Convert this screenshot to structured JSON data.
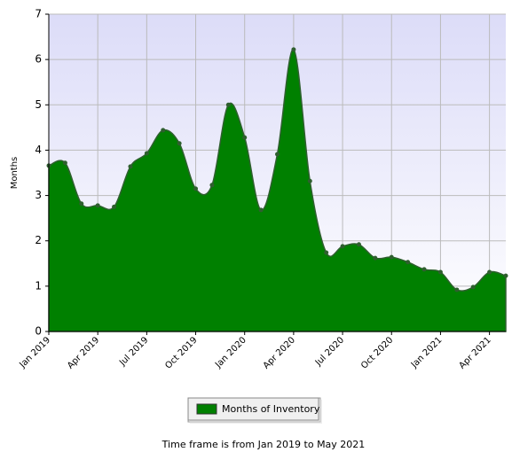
{
  "chart_data": {
    "type": "area",
    "y_label": "Months",
    "categories": [
      "Jan 2019",
      null,
      null,
      "Apr 2019",
      null,
      null,
      "Jul 2019",
      null,
      null,
      "Oct 2019",
      null,
      null,
      "Jan 2020",
      null,
      null,
      "Apr 2020",
      null,
      null,
      "Jul 2020",
      null,
      null,
      "Oct 2020",
      null,
      null,
      "Jan 2021",
      null,
      null,
      "Apr 2021",
      null
    ],
    "series": [
      {
        "name": "Months of Inventory",
        "color": "#008000",
        "values": [
          3.66,
          3.72,
          2.82,
          2.78,
          2.75,
          3.64,
          3.93,
          4.44,
          4.15,
          3.15,
          3.23,
          5.0,
          4.28,
          2.68,
          3.91,
          6.22,
          3.32,
          1.74,
          1.88,
          1.92,
          1.62,
          1.64,
          1.53,
          1.37,
          1.31,
          0.92,
          0.98,
          1.31,
          1.23
        ]
      }
    ],
    "ylim": [
      0,
      7
    ],
    "yticks": [
      0,
      1,
      2,
      3,
      4,
      5,
      6,
      7
    ],
    "grid": true,
    "footnote": "Time frame is from Jan 2019 to May 2021"
  }
}
